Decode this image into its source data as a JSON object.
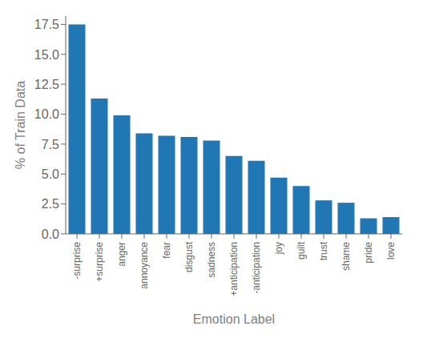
{
  "chart_data": {
    "type": "bar",
    "categories": [
      "-surprise",
      "+surprise",
      "anger",
      "annoyance",
      "fear",
      "disgust",
      "sadness",
      "+anticipation",
      "-anticipation",
      "joy",
      "guilt",
      "trust",
      "shame",
      "pride",
      "love"
    ],
    "values": [
      17.5,
      11.3,
      9.9,
      8.4,
      8.2,
      8.1,
      7.8,
      6.5,
      6.1,
      4.7,
      4.0,
      2.8,
      2.6,
      1.3,
      1.4
    ],
    "color": "#2077b4",
    "xlabel": "Emotion Label",
    "ylabel": "% of Train Data",
    "ylim": [
      0,
      18.2
    ],
    "yticks": [
      {
        "value": 0,
        "label": "0.0"
      },
      2.5,
      {
        "value": 5,
        "label": "5.0"
      },
      7.5,
      {
        "value": 10,
        "label": "10.0"
      },
      12.5,
      {
        "value": 15,
        "label": "15.0"
      },
      17.5
    ]
  }
}
